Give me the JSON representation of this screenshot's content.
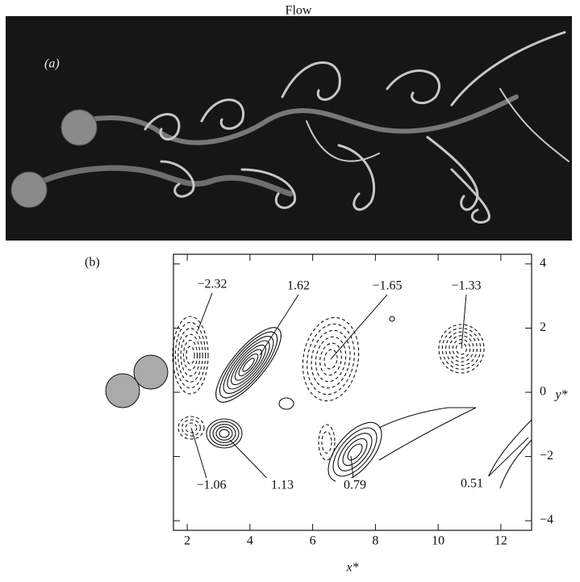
{
  "figure": {
    "flow_label": "Flow",
    "panel_a": {
      "label": "(a)"
    },
    "panel_b": {
      "label": "(b)",
      "xlabel": "x*",
      "ylabel": "y*",
      "xlim": [
        1.56,
        12.98
      ],
      "ylim": [
        -4.3,
        4.3
      ],
      "xticks": [
        2,
        4,
        6,
        8,
        10,
        12
      ],
      "yticks": [
        {
          "value": -4,
          "label": "−4"
        },
        {
          "value": -2,
          "label": "−2"
        },
        0,
        2,
        4
      ],
      "contour_labels": [
        "−2.32",
        "1.62",
        "−1.65",
        "−1.33",
        "−1.06",
        "1.13",
        "0.79",
        "0.51"
      ]
    }
  }
}
